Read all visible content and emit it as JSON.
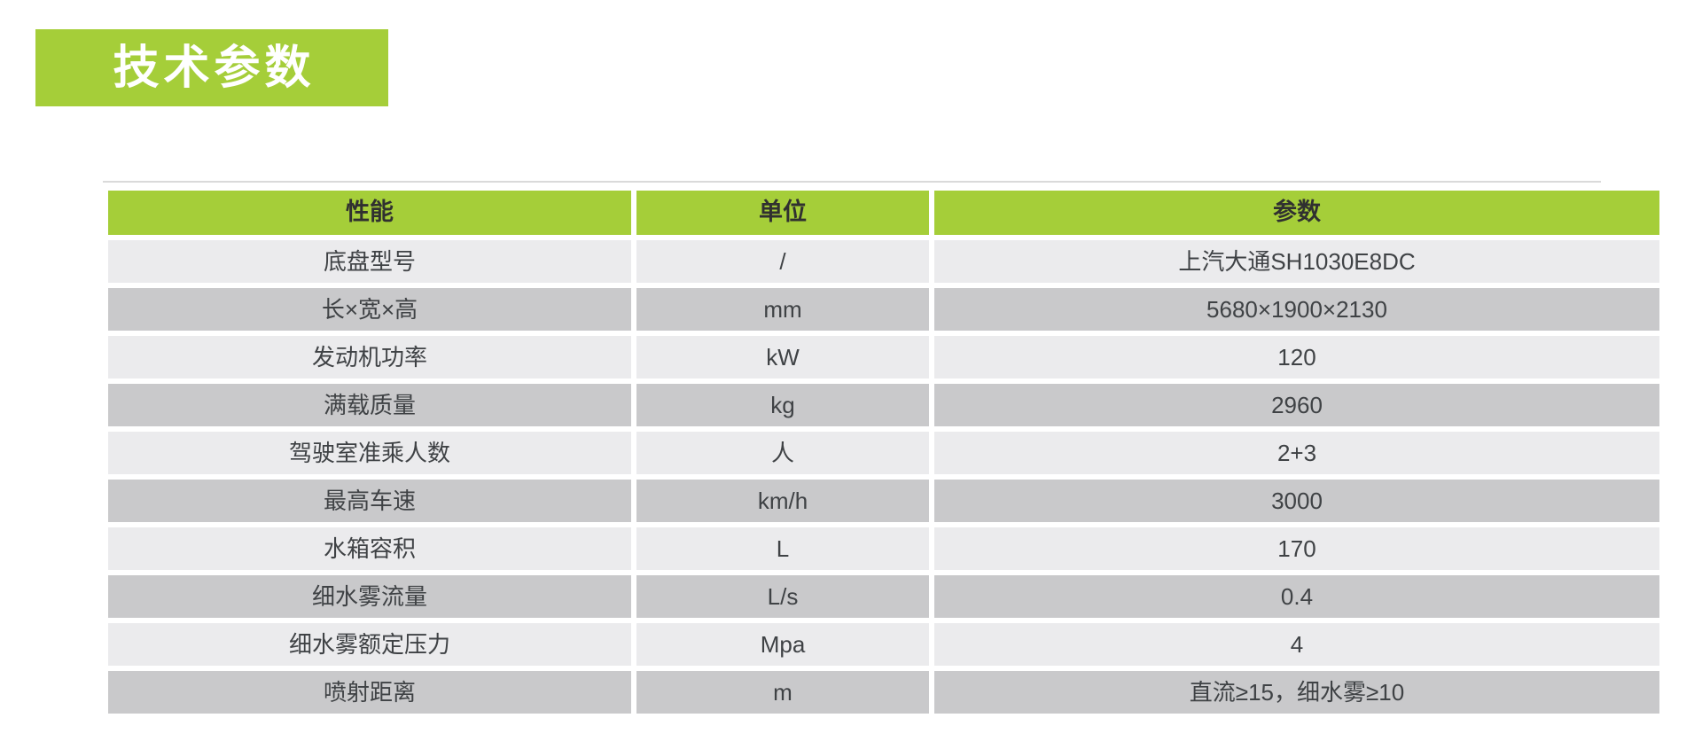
{
  "title": "技术参数",
  "table": {
    "headers": [
      "性能",
      "单位",
      "参数"
    ],
    "rows": [
      {
        "property": "底盘型号",
        "unit": "/",
        "value": "上汽大通SH1030E8DC"
      },
      {
        "property": "长×宽×高",
        "unit": "mm",
        "value": "5680×1900×2130"
      },
      {
        "property": "发动机功率",
        "unit": "kW",
        "value": "120"
      },
      {
        "property": "满载质量",
        "unit": "kg",
        "value": "2960"
      },
      {
        "property": "驾驶室准乘人数",
        "unit": "人",
        "value": "2+3"
      },
      {
        "property": "最高车速",
        "unit": "km/h",
        "value": "3000"
      },
      {
        "property": "水箱容积",
        "unit": "L",
        "value": "170"
      },
      {
        "property": "细水雾流量",
        "unit": "L/s",
        "value": "0.4"
      },
      {
        "property": "细水雾额定压力",
        "unit": "Mpa",
        "value": "4"
      },
      {
        "property": "喷射距离",
        "unit": "m",
        "value": "直流≥15，细水雾≥10"
      }
    ]
  },
  "colors": {
    "accent_green": "#a5ce39",
    "row_light": "#ebebed",
    "row_dark": "#c9c9cb",
    "divider": "#dadada",
    "text": "#3f4245"
  }
}
